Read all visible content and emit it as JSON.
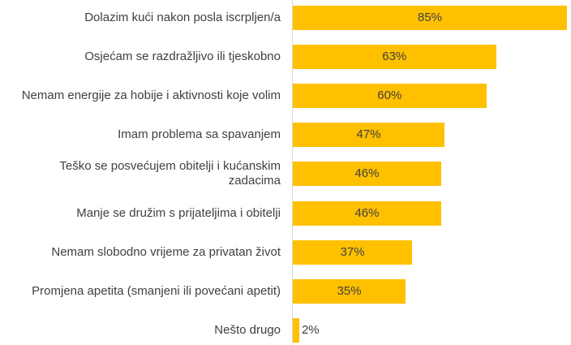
{
  "chart_data": {
    "type": "bar",
    "orientation": "horizontal",
    "title": "",
    "xlabel": "",
    "ylabel": "",
    "xlim": [
      0,
      85
    ],
    "bar_color": "#FFC000",
    "value_suffix": "%",
    "categories": [
      "Dolazim kući nakon posla iscrpljen/a",
      "Osjećam se razdražljivo ili tjeskobno",
      "Nemam energije za hobije i aktivnosti koje volim",
      "Imam problema sa spavanjem",
      "Teško se posvećujem obitelji i kućanskim zadacima",
      "Manje se družim s prijateljima i obitelji",
      "Nemam slobodno vrijeme za privatan život",
      "Promjena apetita (smanjeni ili povećani apetit)",
      "Nešto drugo"
    ],
    "values": [
      85,
      63,
      60,
      47,
      46,
      46,
      37,
      35,
      2
    ],
    "data_labels": [
      "85%",
      "63%",
      "60%",
      "47%",
      "46%",
      "46%",
      "37%",
      "35%",
      "2%"
    ]
  }
}
